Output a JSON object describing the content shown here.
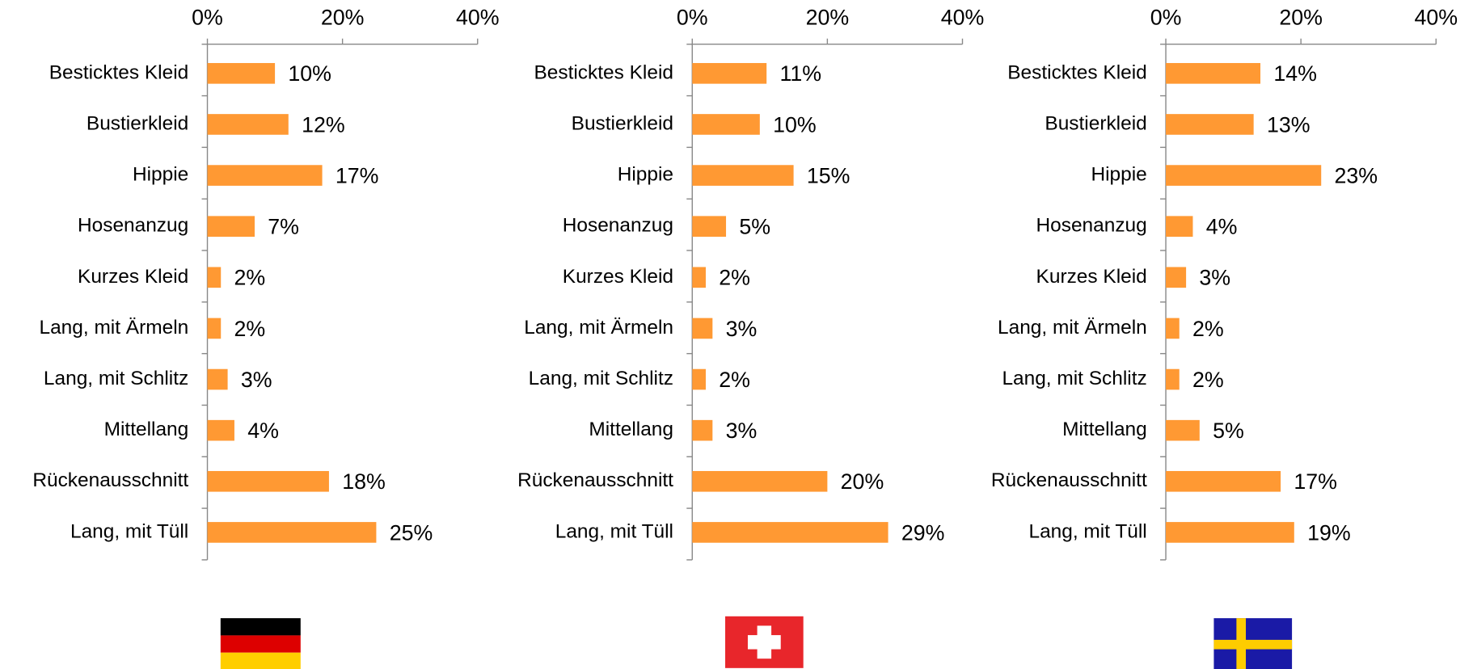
{
  "chart_data": [
    {
      "type": "bar",
      "orientation": "horizontal",
      "color": "#ff9933",
      "categories": [
        "Besticktes Kleid",
        "Bustierkleid",
        "Hippie",
        "Hosenanzug",
        "Kurzes Kleid",
        "Lang, mit Ärmeln",
        "Lang, mit Schlitz",
        "Mittellang",
        "Rückenausschnitt",
        "Lang, mit Tüll"
      ],
      "values": [
        10,
        12,
        17,
        7,
        2,
        2,
        3,
        4,
        18,
        25
      ],
      "value_labels": [
        "10%",
        "12%",
        "17%",
        "7%",
        "2%",
        "2%",
        "3%",
        "4%",
        "18%",
        "25%"
      ],
      "xlim": [
        0,
        40
      ],
      "xticks": [
        {
          "value": 0,
          "label": "0%"
        },
        {
          "value": 20,
          "label": "20%"
        },
        {
          "value": 40,
          "label": "40%"
        }
      ]
    },
    {
      "type": "bar",
      "orientation": "horizontal",
      "color": "#ff9933",
      "categories": [
        "Besticktes Kleid",
        "Bustierkleid",
        "Hippie",
        "Hosenanzug",
        "Kurzes Kleid",
        "Lang, mit Ärmeln",
        "Lang, mit Schlitz",
        "Mittellang",
        "Rückenausschnitt",
        "Lang, mit Tüll"
      ],
      "values": [
        11,
        10,
        15,
        5,
        2,
        3,
        2,
        3,
        20,
        29
      ],
      "value_labels": [
        "11%",
        "10%",
        "15%",
        "5%",
        "2%",
        "3%",
        "2%",
        "3%",
        "20%",
        "29%"
      ],
      "xlim": [
        0,
        40
      ],
      "xticks": [
        {
          "value": 0,
          "label": "0%"
        },
        {
          "value": 20,
          "label": "20%"
        },
        {
          "value": 40,
          "label": "40%"
        }
      ]
    },
    {
      "type": "bar",
      "orientation": "horizontal",
      "color": "#ff9933",
      "categories": [
        "Besticktes Kleid",
        "Bustierkleid",
        "Hippie",
        "Hosenanzug",
        "Kurzes Kleid",
        "Lang, mit Ärmeln",
        "Lang, mit Schlitz",
        "Mittellang",
        "Rückenausschnitt",
        "Lang, mit Tüll"
      ],
      "values": [
        14,
        13,
        23,
        4,
        3,
        2,
        2,
        5,
        17,
        19
      ],
      "value_labels": [
        "14%",
        "13%",
        "23%",
        "4%",
        "3%",
        "2%",
        "2%",
        "5%",
        "17%",
        "19%"
      ],
      "xlim": [
        0,
        40
      ],
      "xticks": [
        {
          "value": 0,
          "label": "0%"
        },
        {
          "value": 20,
          "label": "20%"
        },
        {
          "value": 40,
          "label": "40%"
        }
      ]
    }
  ]
}
